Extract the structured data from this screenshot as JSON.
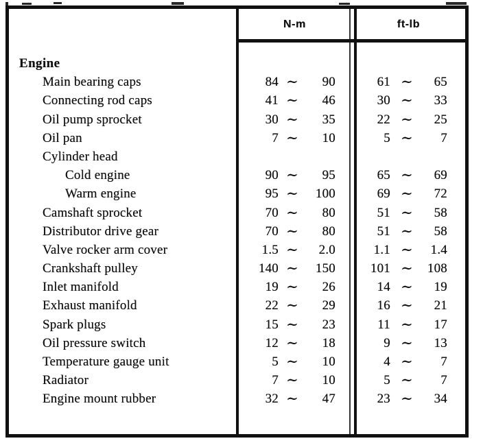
{
  "colors": {
    "ink": "#111111",
    "paper": "#ffffff"
  },
  "table": {
    "headers": {
      "nm": "N-m",
      "ftlb": "ft-lb"
    },
    "rows": [
      {
        "label": "Engine",
        "indent": 0
      },
      {
        "label": "Main bearing caps",
        "indent": 1,
        "nm": [
          "84",
          "∼",
          "90"
        ],
        "ftlb": [
          "61",
          "∼",
          "65"
        ]
      },
      {
        "label": "Connecting rod caps",
        "indent": 1,
        "nm": [
          "41",
          "∼",
          "46"
        ],
        "ftlb": [
          "30",
          "∼",
          "33"
        ]
      },
      {
        "label": "Oil pump sprocket",
        "indent": 1,
        "nm": [
          "30",
          "∼",
          "35"
        ],
        "ftlb": [
          "22",
          "∼",
          "25"
        ]
      },
      {
        "label": "Oil pan",
        "indent": 1,
        "nm": [
          "7",
          "∼",
          "10"
        ],
        "ftlb": [
          "5",
          "∼",
          "7"
        ]
      },
      {
        "label": "Cylinder head",
        "indent": 1
      },
      {
        "label": "Cold engine",
        "indent": 2,
        "nm": [
          "90",
          "∼",
          "95"
        ],
        "ftlb": [
          "65",
          "∼",
          "69"
        ]
      },
      {
        "label": "Warm engine",
        "indent": 2,
        "nm": [
          "95",
          "∼",
          "100"
        ],
        "ftlb": [
          "69",
          "∼",
          "72"
        ]
      },
      {
        "label": "Camshaft sprocket",
        "indent": 1,
        "nm": [
          "70",
          "∼",
          "80"
        ],
        "ftlb": [
          "51",
          "∼",
          "58"
        ]
      },
      {
        "label": "Distributor drive gear",
        "indent": 1,
        "nm": [
          "70",
          "∼",
          "80"
        ],
        "ftlb": [
          "51",
          "∼",
          "58"
        ]
      },
      {
        "label": "Valve rocker arm cover",
        "indent": 1,
        "nm": [
          "1.5",
          "∼",
          "2.0"
        ],
        "ftlb": [
          "1.1",
          "∼",
          "1.4"
        ]
      },
      {
        "label": "Crankshaft pulley",
        "indent": 1,
        "nm": [
          "140",
          "∼",
          "150"
        ],
        "ftlb": [
          "101",
          "∼",
          "108"
        ]
      },
      {
        "label": "Inlet manifold",
        "indent": 1,
        "nm": [
          "19",
          "∼",
          "26"
        ],
        "ftlb": [
          "14",
          "∼",
          "19"
        ]
      },
      {
        "label": "Exhaust manifold",
        "indent": 1,
        "nm": [
          "22",
          "∼",
          "29"
        ],
        "ftlb": [
          "16",
          "∼",
          "21"
        ]
      },
      {
        "label": "Spark plugs",
        "indent": 1,
        "nm": [
          "15",
          "∼",
          "23"
        ],
        "ftlb": [
          "11",
          "∼",
          "17"
        ]
      },
      {
        "label": "Oil pressure switch",
        "indent": 1,
        "nm": [
          "12",
          "∼",
          "18"
        ],
        "ftlb": [
          "9",
          "∼",
          "13"
        ]
      },
      {
        "label": "Temperature gauge unit",
        "indent": 1,
        "nm": [
          "5",
          "∼",
          "10"
        ],
        "ftlb": [
          "4",
          "∼",
          "7"
        ]
      },
      {
        "label": "Radiator",
        "indent": 1,
        "nm": [
          "7",
          "∼",
          "10"
        ],
        "ftlb": [
          "5",
          "∼",
          "7"
        ]
      },
      {
        "label": "Engine mount rubber",
        "indent": 1,
        "nm": [
          "32",
          "∼",
          "47"
        ],
        "ftlb": [
          "23",
          "∼",
          "34"
        ]
      }
    ]
  }
}
